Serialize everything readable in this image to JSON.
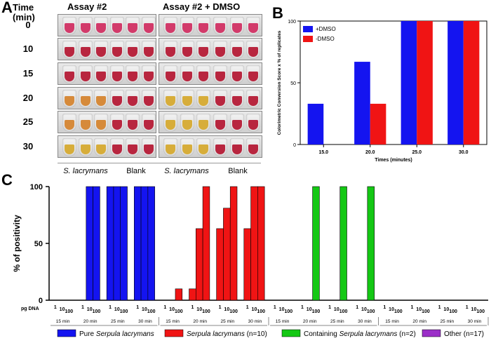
{
  "panelA": {
    "letter": "A",
    "time_title": "Time\n(min)",
    "header_left": "Assay #2",
    "header_right": "Assay #2 + DMSO",
    "times": [
      "0",
      "10",
      "15",
      "20",
      "25",
      "30"
    ],
    "sample_label": "S. lacrymans",
    "blank_label": "Blank",
    "colors": {
      "pink": "#d23a6a",
      "red": "#b8263f",
      "orange": "#d68a3a",
      "yellow": "#d7ad3a"
    }
  },
  "panelB": {
    "letter": "B"
  },
  "panelC": {
    "letter": "C"
  },
  "chart_data": [
    {
      "type": "bar",
      "id": "B",
      "categories": [
        "15.0",
        "20.0",
        "25.0",
        "30.0"
      ],
      "series": [
        {
          "name": "+DMSO",
          "color": "#1414f0",
          "values": [
            33,
            67,
            100,
            100
          ]
        },
        {
          "name": "-DMSO",
          "color": "#f01414",
          "values": [
            0,
            33,
            100,
            100
          ]
        }
      ],
      "xlabel": "Times (minutes)",
      "ylabel": "Colorimetric Conversion Score x % of replicates",
      "ylim": [
        0,
        100
      ],
      "yticks": [
        "0",
        "50",
        "100"
      ]
    },
    {
      "type": "bar",
      "id": "C",
      "ylabel": "% of positivity",
      "xprefix": "pg  DNA",
      "ylim": [
        0,
        100
      ],
      "yticks": [
        "0",
        "50",
        "100"
      ],
      "dna_labels": [
        "1",
        "10",
        "100"
      ],
      "time_labels": [
        "15 min",
        "20 min",
        "25 min",
        "30 min"
      ],
      "groups": [
        {
          "name": "Pure Serpula lacrymans",
          "color": "#1414f0",
          "values": [
            [
              0,
              0,
              0
            ],
            [
              0,
              100,
              100
            ],
            [
              100,
              100,
              100
            ],
            [
              100,
              100,
              100
            ]
          ]
        },
        {
          "name": "Serpula lacrymans (n=10)",
          "color": "#f01414",
          "values": [
            [
              0,
              0,
              10
            ],
            [
              10,
              63,
              100
            ],
            [
              63,
              81,
              100
            ],
            [
              63,
              100,
              100
            ]
          ]
        },
        {
          "name": "Containing Serpula lacrymans (n=2)",
          "color": "#14c814",
          "values": [
            [
              0,
              0,
              0
            ],
            [
              0,
              0,
              100
            ],
            [
              0,
              0,
              100
            ],
            [
              0,
              0,
              100
            ]
          ]
        },
        {
          "name": "Other (n=17)",
          "color": "#9b2fc8",
          "values": [
            [
              0,
              0,
              0
            ],
            [
              0,
              0,
              0
            ],
            [
              0,
              0,
              0
            ],
            [
              0,
              0,
              0
            ]
          ]
        }
      ],
      "legend": [
        {
          "label_prefix": "Pure ",
          "label_italic": "Serpula lacrymans",
          "label_suffix": "",
          "color": "#1414f0"
        },
        {
          "label_prefix": "",
          "label_italic": "Serpula lacrymans",
          "label_suffix": " (n=10)",
          "color": "#f01414"
        },
        {
          "label_prefix": "Containing ",
          "label_italic": "Serpula lacrymans",
          "label_suffix": " (n=2)",
          "color": "#14c814"
        },
        {
          "label_prefix": "Other (n=17)",
          "label_italic": "",
          "label_suffix": "",
          "color": "#9b2fc8"
        }
      ]
    }
  ]
}
